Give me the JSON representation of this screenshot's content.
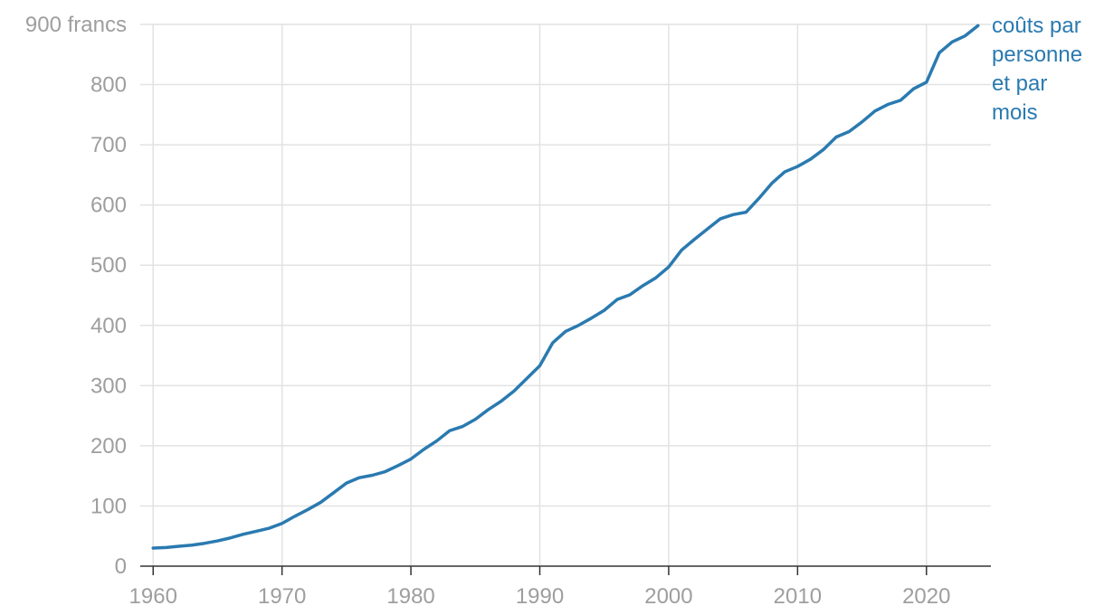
{
  "chart_data": {
    "type": "line",
    "title": "",
    "xlabel": "",
    "ylabel": "",
    "xlim": [
      1959,
      2025
    ],
    "ylim": [
      0,
      900
    ],
    "grid": true,
    "x_ticks": [
      1960,
      1970,
      1980,
      1990,
      2000,
      2010,
      2020
    ],
    "y_ticks": [
      0,
      100,
      200,
      300,
      400,
      500,
      600,
      700,
      800,
      900
    ],
    "y_tick_labels": [
      "0",
      "100",
      "200",
      "300",
      "400",
      "500",
      "600",
      "700",
      "800",
      "900 francs"
    ],
    "series": [
      {
        "name": "coûts par personne et par mois",
        "label_lines": [
          "coûts par",
          "personne",
          "et par",
          "mois"
        ],
        "color": "#2a7ab0",
        "x": [
          1960,
          1961,
          1962,
          1963,
          1964,
          1965,
          1966,
          1967,
          1968,
          1969,
          1970,
          1971,
          1972,
          1973,
          1974,
          1975,
          1976,
          1977,
          1978,
          1979,
          1980,
          1981,
          1982,
          1983,
          1984,
          1985,
          1986,
          1987,
          1988,
          1989,
          1990,
          1991,
          1992,
          1993,
          1994,
          1995,
          1996,
          1997,
          1998,
          1999,
          2000,
          2001,
          2002,
          2003,
          2004,
          2005,
          2006,
          2007,
          2008,
          2009,
          2010,
          2011,
          2012,
          2013,
          2014,
          2015,
          2016,
          2017,
          2018,
          2019,
          2020,
          2021,
          2022,
          2023,
          2024
        ],
        "y": [
          30,
          31,
          33,
          35,
          38,
          42,
          47,
          53,
          58,
          63,
          71,
          83,
          94,
          106,
          122,
          138,
          147,
          151,
          157,
          167,
          178,
          194,
          208,
          225,
          232,
          244,
          260,
          274,
          291,
          312,
          333,
          371,
          390,
          400,
          412,
          425,
          443,
          451,
          466,
          479,
          497,
          525,
          543,
          560,
          577,
          584,
          588,
          611,
          636,
          655,
          664,
          676,
          692,
          713,
          722,
          738,
          756,
          767,
          774,
          793,
          804,
          853,
          871,
          881,
          898
        ]
      }
    ]
  }
}
